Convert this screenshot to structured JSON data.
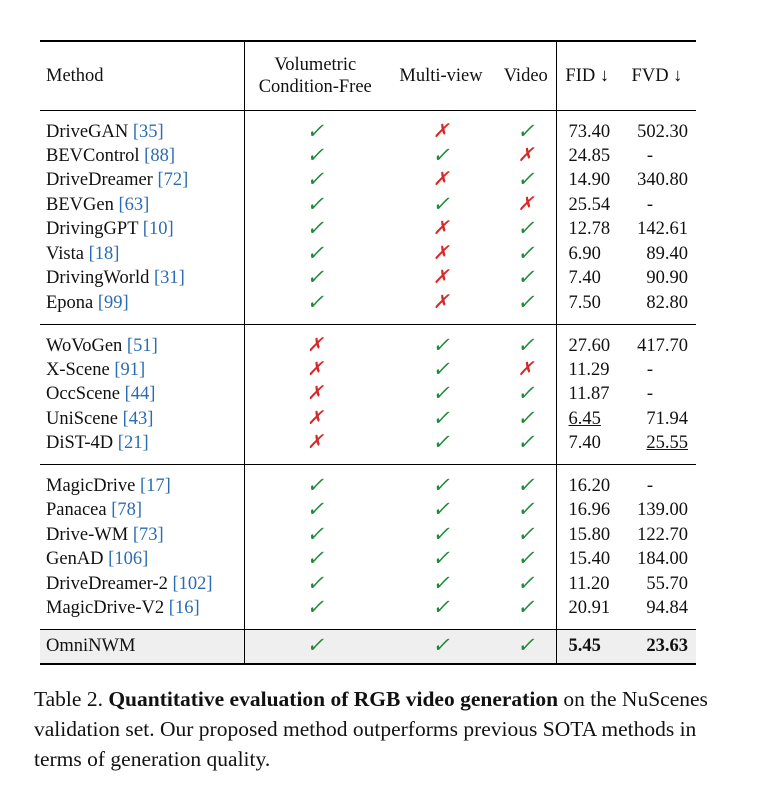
{
  "colors": {
    "check": "#1f8a3a",
    "cross": "#d62828",
    "ref": "#2b6cb0",
    "highlight_row": "#efefef"
  },
  "icons": {
    "check": "check-icon",
    "cross": "cross-icon"
  },
  "header": {
    "method": "Method",
    "vol_line1": "Volumetric",
    "vol_line2": "Condition-Free",
    "multiview": "Multi-view",
    "video": "Video",
    "fid": "FID ↓",
    "fvd": "FVD ↓"
  },
  "groups": [
    {
      "rows": [
        {
          "name": "DriveGAN ",
          "ref": "[35]",
          "vol": "✓",
          "mv": "✗",
          "vid": "✓",
          "fid": "73.40",
          "fvd": "502.30"
        },
        {
          "name": "BEVControl ",
          "ref": "[88]",
          "vol": "✓",
          "mv": "✓",
          "vid": "✗",
          "fid": "24.85",
          "fvd": "-"
        },
        {
          "name": "DriveDreamer ",
          "ref": "[72]",
          "vol": "✓",
          "mv": "✗",
          "vid": "✓",
          "fid": "14.90",
          "fvd": "340.80"
        },
        {
          "name": "BEVGen ",
          "ref": "[63]",
          "vol": "✓",
          "mv": "✓",
          "vid": "✗",
          "fid": "25.54",
          "fvd": "-"
        },
        {
          "name": "DrivingGPT ",
          "ref": "[10]",
          "vol": "✓",
          "mv": "✗",
          "vid": "✓",
          "fid": "12.78",
          "fvd": "142.61"
        },
        {
          "name": "Vista ",
          "ref": "[18]",
          "vol": "✓",
          "mv": "✗",
          "vid": "✓",
          "fid": "6.90",
          "fvd": "89.40"
        },
        {
          "name": "DrivingWorld ",
          "ref": "[31]",
          "vol": "✓",
          "mv": "✗",
          "vid": "✓",
          "fid": "7.40",
          "fvd": "90.90"
        },
        {
          "name": "Epona ",
          "ref": "[99]",
          "vol": "✓",
          "mv": "✗",
          "vid": "✓",
          "fid": "7.50",
          "fvd": "82.80"
        }
      ]
    },
    {
      "rows": [
        {
          "name": "WoVoGen ",
          "ref": "[51]",
          "vol": "✗",
          "mv": "✓",
          "vid": "✓",
          "fid": "27.60",
          "fvd": "417.70"
        },
        {
          "name": "X-Scene ",
          "ref": "[91]",
          "vol": "✗",
          "mv": "✓",
          "vid": "✗",
          "fid": "11.29",
          "fvd": "-"
        },
        {
          "name": "OccScene ",
          "ref": "[44]",
          "vol": "✗",
          "mv": "✓",
          "vid": "✓",
          "fid": "11.87",
          "fvd": "-"
        },
        {
          "name": "UniScene ",
          "ref": "[43]",
          "vol": "✗",
          "mv": "✓",
          "vid": "✓",
          "fid": "6.45",
          "fvd": "71.94",
          "fid_underline": true
        },
        {
          "name": "DiST-4D ",
          "ref": "[21]",
          "vol": "✗",
          "mv": "✓",
          "vid": "✓",
          "fid": "7.40",
          "fvd": "25.55",
          "fvd_underline": true
        }
      ]
    },
    {
      "rows": [
        {
          "name": "MagicDrive ",
          "ref": "[17]",
          "vol": "✓",
          "mv": "✓",
          "vid": "✓",
          "fid": "16.20",
          "fvd": "-"
        },
        {
          "name": "Panacea ",
          "ref": "[78]",
          "vol": "✓",
          "mv": "✓",
          "vid": "✓",
          "fid": "16.96",
          "fvd": "139.00"
        },
        {
          "name": "Drive-WM ",
          "ref": "[73]",
          "vol": "✓",
          "mv": "✓",
          "vid": "✓",
          "fid": "15.80",
          "fvd": "122.70"
        },
        {
          "name": "GenAD ",
          "ref": "[106]",
          "vol": "✓",
          "mv": "✓",
          "vid": "✓",
          "fid": "15.40",
          "fvd": "184.00"
        },
        {
          "name": "DriveDreamer-2 ",
          "ref": "[102]",
          "vol": "✓",
          "mv": "✓",
          "vid": "✓",
          "fid": "11.20",
          "fvd": "55.70"
        },
        {
          "name": "MagicDrive-V2 ",
          "ref": "[16]",
          "vol": "✓",
          "mv": "✓",
          "vid": "✓",
          "fid": "20.91",
          "fvd": "94.84"
        }
      ]
    }
  ],
  "ours": {
    "name": "OmniNWM",
    "vol": "✓",
    "mv": "✓",
    "vid": "✓",
    "fid": "5.45",
    "fvd": "23.63"
  },
  "caption": {
    "label": "Table 2. ",
    "bold": "Quantitative evaluation of RGB video generation",
    "rest": " on the NuScenes validation set. Our proposed method outperforms previous SOTA methods in terms of generation quality."
  }
}
